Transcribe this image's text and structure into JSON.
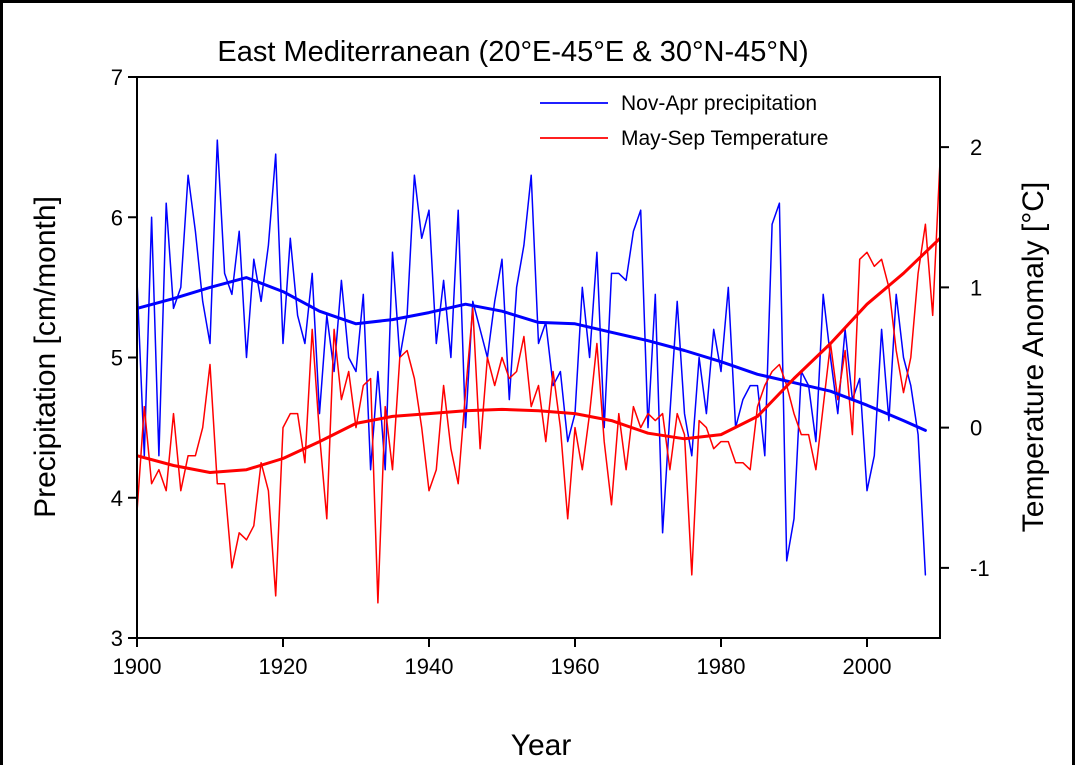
{
  "chart_data": {
    "type": "line",
    "title": "East Mediterranean (20°E-45°E & 30°N-45°N)",
    "xlabel": "Year",
    "ylabel": "Precipitation [cm/month]",
    "y2label": "Temperature Anomaly [°C]",
    "xlim": [
      1900,
      2010
    ],
    "ylim": [
      3,
      7
    ],
    "y2lim": [
      -1.5,
      2.5
    ],
    "xticks": [
      1900,
      1920,
      1940,
      1960,
      1980,
      2000
    ],
    "yticks": [
      3,
      4,
      5,
      6,
      7
    ],
    "y2ticks": [
      -1,
      0,
      1,
      2
    ],
    "legend_position": "top-right",
    "grid": false,
    "series": [
      {
        "name": "Nov-Apr precipitation",
        "axis": "left",
        "color": "#0000ff",
        "x": [
          1900,
          1901,
          1902,
          1903,
          1904,
          1905,
          1906,
          1907,
          1908,
          1909,
          1910,
          1911,
          1912,
          1913,
          1914,
          1915,
          1916,
          1917,
          1918,
          1919,
          1920,
          1921,
          1922,
          1923,
          1924,
          1925,
          1926,
          1927,
          1928,
          1929,
          1930,
          1931,
          1932,
          1933,
          1934,
          1935,
          1936,
          1937,
          1938,
          1939,
          1940,
          1941,
          1942,
          1943,
          1944,
          1945,
          1946,
          1947,
          1948,
          1949,
          1950,
          1951,
          1952,
          1953,
          1954,
          1955,
          1956,
          1957,
          1958,
          1959,
          1960,
          1961,
          1962,
          1963,
          1964,
          1965,
          1966,
          1967,
          1968,
          1969,
          1970,
          1971,
          1972,
          1973,
          1974,
          1975,
          1976,
          1977,
          1978,
          1979,
          1980,
          1981,
          1982,
          1983,
          1984,
          1985,
          1986,
          1987,
          1988,
          1989,
          1990,
          1991,
          1992,
          1993,
          1994,
          1995,
          1996,
          1997,
          1998,
          1999,
          2000,
          2001,
          2002,
          2003,
          2004,
          2005,
          2006,
          2007,
          2008
        ],
        "y": [
          5.55,
          4.3,
          6.0,
          4.3,
          6.1,
          5.35,
          5.5,
          6.3,
          5.9,
          5.4,
          5.1,
          6.55,
          5.6,
          5.45,
          5.9,
          5.0,
          5.7,
          5.4,
          5.8,
          6.45,
          5.1,
          5.85,
          5.3,
          5.1,
          5.6,
          4.6,
          5.3,
          4.9,
          5.55,
          5.0,
          4.9,
          5.45,
          4.2,
          4.9,
          4.2,
          5.75,
          5.0,
          5.3,
          6.3,
          5.85,
          6.05,
          5.1,
          5.55,
          5.0,
          6.05,
          4.5,
          5.4,
          5.2,
          5.0,
          5.4,
          5.7,
          4.7,
          5.5,
          5.8,
          6.3,
          5.1,
          5.25,
          4.8,
          4.9,
          4.4,
          4.6,
          5.5,
          5.0,
          5.75,
          4.5,
          5.6,
          5.6,
          5.55,
          5.9,
          6.05,
          4.5,
          5.45,
          3.75,
          4.6,
          5.4,
          4.6,
          4.3,
          5.0,
          4.6,
          5.2,
          4.9,
          5.5,
          4.5,
          4.7,
          4.8,
          4.8,
          4.3,
          5.95,
          6.1,
          3.55,
          3.85,
          4.9,
          4.8,
          4.4,
          5.45,
          5.0,
          4.6,
          5.2,
          4.7,
          4.85,
          4.05,
          4.3,
          5.2,
          4.55,
          5.45,
          5.0,
          4.8,
          4.45,
          3.45
        ]
      },
      {
        "name": "May-Sep Temperature",
        "axis": "right",
        "color": "#ff0000",
        "x": [
          1900,
          1901,
          1902,
          1903,
          1904,
          1905,
          1906,
          1907,
          1908,
          1909,
          1910,
          1911,
          1912,
          1913,
          1914,
          1915,
          1916,
          1917,
          1918,
          1919,
          1920,
          1921,
          1922,
          1923,
          1924,
          1925,
          1926,
          1927,
          1928,
          1929,
          1930,
          1931,
          1932,
          1933,
          1934,
          1935,
          1936,
          1937,
          1938,
          1939,
          1940,
          1941,
          1942,
          1943,
          1944,
          1945,
          1946,
          1947,
          1948,
          1949,
          1950,
          1951,
          1952,
          1953,
          1954,
          1955,
          1956,
          1957,
          1958,
          1959,
          1960,
          1961,
          1962,
          1963,
          1964,
          1965,
          1966,
          1967,
          1968,
          1969,
          1970,
          1971,
          1972,
          1973,
          1974,
          1975,
          1976,
          1977,
          1978,
          1979,
          1980,
          1981,
          1982,
          1983,
          1984,
          1985,
          1986,
          1987,
          1988,
          1989,
          1990,
          1991,
          1992,
          1993,
          1994,
          1995,
          1996,
          1997,
          1998,
          1999,
          2000,
          2001,
          2002,
          2003,
          2004,
          2005,
          2006,
          2007,
          2008,
          2009,
          2010
        ],
        "y": [
          -0.6,
          0.15,
          -0.4,
          -0.3,
          -0.45,
          0.1,
          -0.45,
          -0.2,
          -0.2,
          0.0,
          0.45,
          -0.4,
          -0.4,
          -1.0,
          -0.75,
          -0.8,
          -0.7,
          -0.25,
          -0.45,
          -1.2,
          0.0,
          0.1,
          0.1,
          -0.25,
          0.7,
          -0.05,
          -0.65,
          0.7,
          0.2,
          0.4,
          0.0,
          0.3,
          0.35,
          -1.25,
          0.15,
          -0.3,
          0.5,
          0.55,
          0.35,
          0.0,
          -0.45,
          -0.3,
          0.3,
          -0.15,
          -0.4,
          0.25,
          0.85,
          -0.15,
          0.5,
          0.3,
          0.5,
          0.35,
          0.4,
          0.65,
          0.15,
          0.3,
          -0.1,
          0.4,
          0.0,
          -0.65,
          0.0,
          -0.3,
          0.1,
          0.6,
          -0.1,
          -0.55,
          0.1,
          -0.3,
          0.15,
          0.0,
          0.1,
          0.05,
          0.1,
          -0.3,
          0.1,
          -0.05,
          -1.05,
          0.05,
          0.0,
          -0.15,
          -0.1,
          -0.1,
          -0.25,
          -0.25,
          -0.3,
          0.15,
          0.3,
          0.4,
          0.45,
          0.3,
          0.1,
          -0.05,
          -0.05,
          -0.3,
          0.15,
          0.6,
          0.2,
          0.55,
          -0.05,
          1.2,
          1.25,
          1.15,
          1.2,
          1.0,
          0.55,
          0.25,
          0.5,
          1.1,
          1.45,
          0.8,
          1.9
        ]
      },
      {
        "axis": "left",
        "color": "#0000ff",
        "smooth": true,
        "x": [
          1900,
          1905,
          1910,
          1915,
          1920,
          1925,
          1930,
          1935,
          1940,
          1945,
          1950,
          1955,
          1960,
          1965,
          1970,
          1975,
          1980,
          1985,
          1990,
          1995,
          2000,
          2005,
          2008
        ],
        "y": [
          5.35,
          5.42,
          5.5,
          5.57,
          5.47,
          5.33,
          5.24,
          5.27,
          5.32,
          5.38,
          5.33,
          5.25,
          5.24,
          5.18,
          5.12,
          5.05,
          4.97,
          4.88,
          4.82,
          4.76,
          4.66,
          4.55,
          4.48
        ]
      },
      {
        "axis": "right",
        "color": "#ff0000",
        "smooth": true,
        "x": [
          1900,
          1905,
          1910,
          1915,
          1920,
          1925,
          1930,
          1935,
          1940,
          1945,
          1950,
          1955,
          1960,
          1965,
          1970,
          1975,
          1980,
          1985,
          1990,
          1995,
          2000,
          2005,
          2010
        ],
        "y": [
          -0.2,
          -0.27,
          -0.32,
          -0.3,
          -0.22,
          -0.1,
          0.03,
          0.08,
          0.1,
          0.12,
          0.13,
          0.12,
          0.1,
          0.05,
          -0.04,
          -0.08,
          -0.05,
          0.08,
          0.35,
          0.6,
          0.88,
          1.1,
          1.35
        ]
      }
    ]
  }
}
